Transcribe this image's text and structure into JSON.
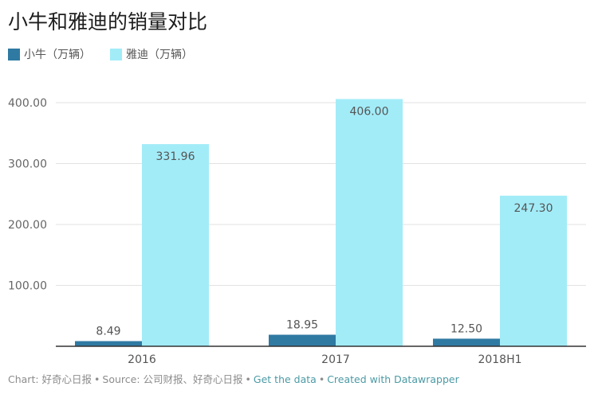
{
  "chart_data": {
    "type": "bar",
    "title": "小牛和雅迪的销量对比",
    "categories": [
      "2016",
      "2017",
      "2018H1"
    ],
    "series": [
      {
        "name": "小牛（万辆）",
        "color": "#2f7aa3",
        "values": [
          8.49,
          18.95,
          12.5
        ],
        "labels": [
          "8.49",
          "18.95",
          "12.50"
        ]
      },
      {
        "name": "雅迪（万辆）",
        "color": "#a2ecf8",
        "values": [
          331.96,
          406.0,
          247.3
        ],
        "labels": [
          "331.96",
          "406.00",
          "247.30"
        ]
      }
    ],
    "yticks": [
      "100.00",
      "200.00",
      "300.00",
      "400.00"
    ],
    "ylim": [
      0,
      406
    ],
    "grid": true,
    "legend_position": "top-left"
  },
  "footer": {
    "chart_label": "Chart: 好奇心日报",
    "source_label": "Source: 公司财报、好奇心日报",
    "get_data": "Get the data",
    "created_with": "Created with Datawrapper",
    "separator": "•"
  }
}
